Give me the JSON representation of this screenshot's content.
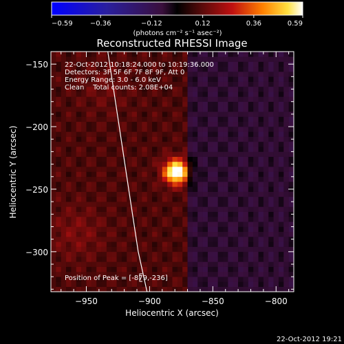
{
  "colorbar": {
    "ticks": [
      -0.59,
      -0.36,
      -0.12,
      0.12,
      0.36,
      0.59
    ],
    "tick_labels": [
      "−0.59",
      "−0.36",
      "−0.12",
      "0.12",
      "0.36",
      "0.59"
    ],
    "unit_label": "(photons cm⁻² s⁻¹ asec⁻²)",
    "range": [
      -0.59,
      0.59
    ]
  },
  "chart_data": {
    "type": "heatmap",
    "title": "Reconstructed RHESSI Image",
    "xlabel": "Heliocentric X (arcsec)",
    "ylabel": "Heliocentric Y (arcsec)",
    "xlim": [
      -978,
      -786
    ],
    "ylim": [
      -332,
      -140
    ],
    "x_ticks": [
      -950,
      -900,
      -850,
      -800
    ],
    "x_tick_labels": [
      "−950",
      "−900",
      "−850",
      "−800"
    ],
    "y_ticks": [
      -300,
      -250,
      -200,
      -150
    ],
    "y_tick_labels": [
      "−300",
      "−250",
      "−200",
      "−150"
    ],
    "annotations": [
      "22-Oct-2012 10:18:24.000 to 10:19:36.000",
      "Detectors: 3F 5F 6F 7F 8F 9F, Att 0",
      "Energy Range: 3.0 - 6.0 keV",
      "Clean    Total counts: 2.08E+04"
    ],
    "peak": {
      "label": "Position of Peak = [-879,-236]",
      "x": -879,
      "y": -236,
      "value": 0.59
    },
    "pixel_size_arcsec": 4,
    "limb_curve": [
      [
        -933,
        -140
      ],
      [
        -927,
        -180
      ],
      [
        -921,
        -220
      ],
      [
        -915,
        -260
      ],
      [
        -909,
        -300
      ],
      [
        -902,
        -332
      ]
    ],
    "grid": false
  },
  "footer": {
    "timestamp": "22-Oct-2012 19:21"
  }
}
